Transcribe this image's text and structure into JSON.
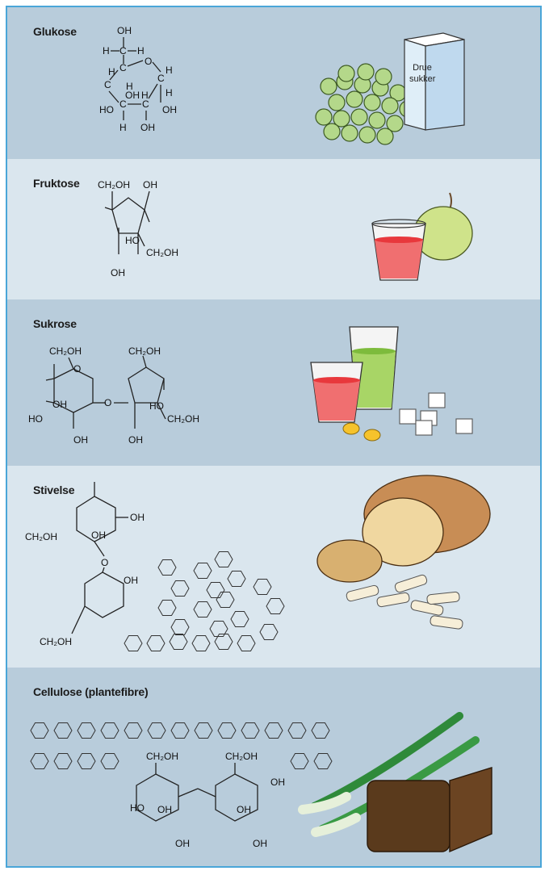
{
  "panels": [
    {
      "title": "Glukose",
      "structure_labels": [
        "OH",
        "H",
        "H",
        "H",
        "H",
        "H",
        "H",
        "HO",
        "OH",
        "H",
        "OH",
        "OH",
        "H",
        "C",
        "C",
        "C",
        "C",
        "C",
        "C",
        "O"
      ],
      "box_label_line1": "Drue",
      "box_label_line2": "sukker"
    },
    {
      "title": "Fruktose",
      "structure_labels": [
        "CH₂OH",
        "OH",
        "HO",
        "CH₂OH",
        "OH"
      ]
    },
    {
      "title": "Sukrose",
      "structure_labels": [
        "CH₂OH",
        "CH₂OH",
        "OH",
        "HO",
        "OH",
        "O",
        "HO",
        "OH",
        "CH₂OH"
      ]
    },
    {
      "title": "Stivelse",
      "structure_labels": [
        "OH",
        "CH₂OH",
        "OH",
        "O",
        "OH",
        "CH₂OH"
      ]
    },
    {
      "title": "Cellulose (plantefibre)",
      "structure_labels": [
        "CH₂OH",
        "CH₂OH",
        "HO",
        "OH",
        "OH",
        "OH",
        "OH",
        "OH"
      ]
    }
  ],
  "colors": {
    "border": "#4aa6d8",
    "panel_dark": "#b8ccdb",
    "panel_light": "#dae6ee",
    "grape": "#a9d17a",
    "juice_red": "#e8383c",
    "juice_green": "#9ccf4a",
    "apple": "#cfe38a",
    "bread": "#e6c58a",
    "leek_green": "#2f8a3a",
    "dark_bread": "#5a3a1c"
  }
}
